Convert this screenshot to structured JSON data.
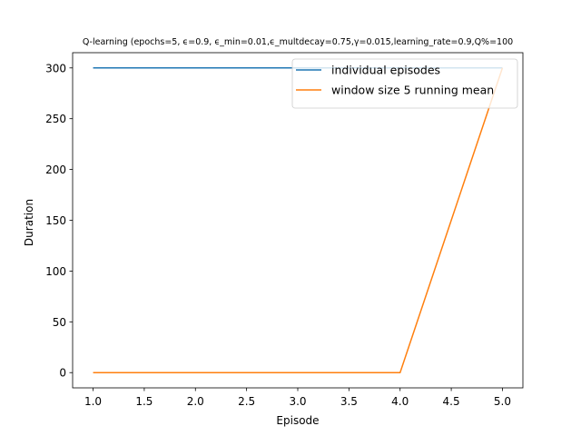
{
  "chart_data": {
    "type": "line",
    "title": "Q-learning (epochs=5, ϵ=0.9, ϵ_min=0.01,ϵ_multdecay=0.75,γ=0.015,learning_rate=0.9,Q%=100",
    "xlabel": "Episode",
    "ylabel": "Duration",
    "xlim": [
      0.8,
      5.2
    ],
    "ylim": [
      -15,
      315
    ],
    "x_ticks": [
      1.0,
      1.5,
      2.0,
      2.5,
      3.0,
      3.5,
      4.0,
      4.5,
      5.0
    ],
    "x_tick_labels": [
      "1.0",
      "1.5",
      "2.0",
      "2.5",
      "3.0",
      "3.5",
      "4.0",
      "4.5",
      "5.0"
    ],
    "y_ticks": [
      0,
      50,
      100,
      150,
      200,
      250,
      300
    ],
    "y_tick_labels": [
      "0",
      "50",
      "100",
      "150",
      "200",
      "250",
      "300"
    ],
    "grid": false,
    "legend_position": "top-right",
    "series": [
      {
        "name": "individual episodes",
        "color": "#1f77b4",
        "x": [
          1,
          2,
          3,
          4,
          5
        ],
        "y": [
          300,
          300,
          300,
          300,
          300
        ]
      },
      {
        "name": "window size 5 running mean",
        "color": "#ff7f0e",
        "x": [
          1,
          2,
          3,
          4,
          5
        ],
        "y": [
          0,
          0,
          0,
          0,
          300
        ]
      }
    ]
  }
}
